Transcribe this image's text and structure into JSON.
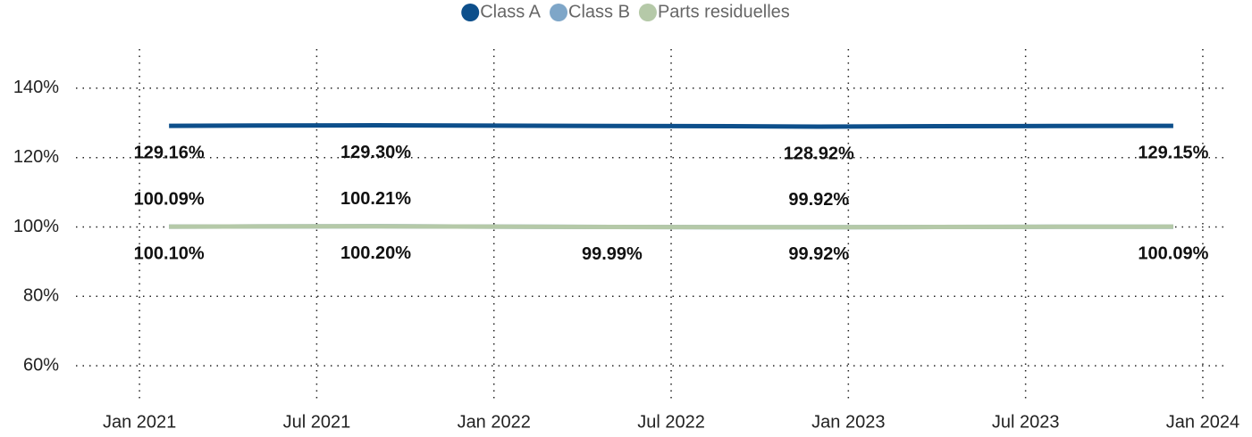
{
  "chart_data": {
    "type": "line",
    "x": [
      "2021-02",
      "2021-05",
      "2021-09",
      "2022-01",
      "2022-05",
      "2022-09",
      "2022-12",
      "2023-04",
      "2023-08",
      "2023-12"
    ],
    "series": [
      {
        "name": "Class A",
        "color": "#0d4f8b",
        "label_position": "below",
        "values": [
          129.16,
          129.25,
          129.3,
          129.2,
          129.1,
          129.05,
          128.92,
          129.05,
          129.1,
          129.15
        ],
        "value_labels": [
          "129.16%",
          null,
          "129.30%",
          null,
          null,
          null,
          "128.92%",
          null,
          null,
          "129.15%"
        ]
      },
      {
        "name": "Class B",
        "color": "#7ea6c8",
        "label_position": "above",
        "values": [
          100.09,
          100.15,
          100.21,
          100.1,
          100.0,
          99.95,
          99.92,
          100.0,
          100.05,
          100.08
        ],
        "value_labels": [
          "100.09%",
          null,
          "100.21%",
          null,
          null,
          null,
          "99.92%",
          null,
          null,
          null
        ]
      },
      {
        "name": "Parts residuelles",
        "color": "#b5c9a8",
        "label_position": "below",
        "values": [
          100.1,
          100.15,
          100.2,
          100.1,
          99.99,
          99.95,
          99.92,
          100.0,
          100.05,
          100.09
        ],
        "value_labels": [
          "100.10%",
          null,
          "100.20%",
          null,
          "99.99%",
          null,
          "99.92%",
          null,
          null,
          "100.09%"
        ]
      }
    ],
    "xlim": [
      "2020-11",
      "2024-02"
    ],
    "xticks": [
      {
        "value": "2021-01",
        "label": "Jan 2021"
      },
      {
        "value": "2021-07",
        "label": "Jul 2021"
      },
      {
        "value": "2022-01",
        "label": "Jan 2022"
      },
      {
        "value": "2022-07",
        "label": "Jul 2022"
      },
      {
        "value": "2023-01",
        "label": "Jan 2023"
      },
      {
        "value": "2023-07",
        "label": "Jul 2023"
      },
      {
        "value": "2024-01",
        "label": "Jan 2024"
      }
    ],
    "ylim": [
      50,
      150
    ],
    "yticks": [
      {
        "value": 60,
        "label": "60%"
      },
      {
        "value": 80,
        "label": "80%"
      },
      {
        "value": 100,
        "label": "100%"
      },
      {
        "value": 120,
        "label": "120%"
      },
      {
        "value": 140,
        "label": "140%"
      }
    ],
    "grid": true,
    "legend": "top"
  }
}
